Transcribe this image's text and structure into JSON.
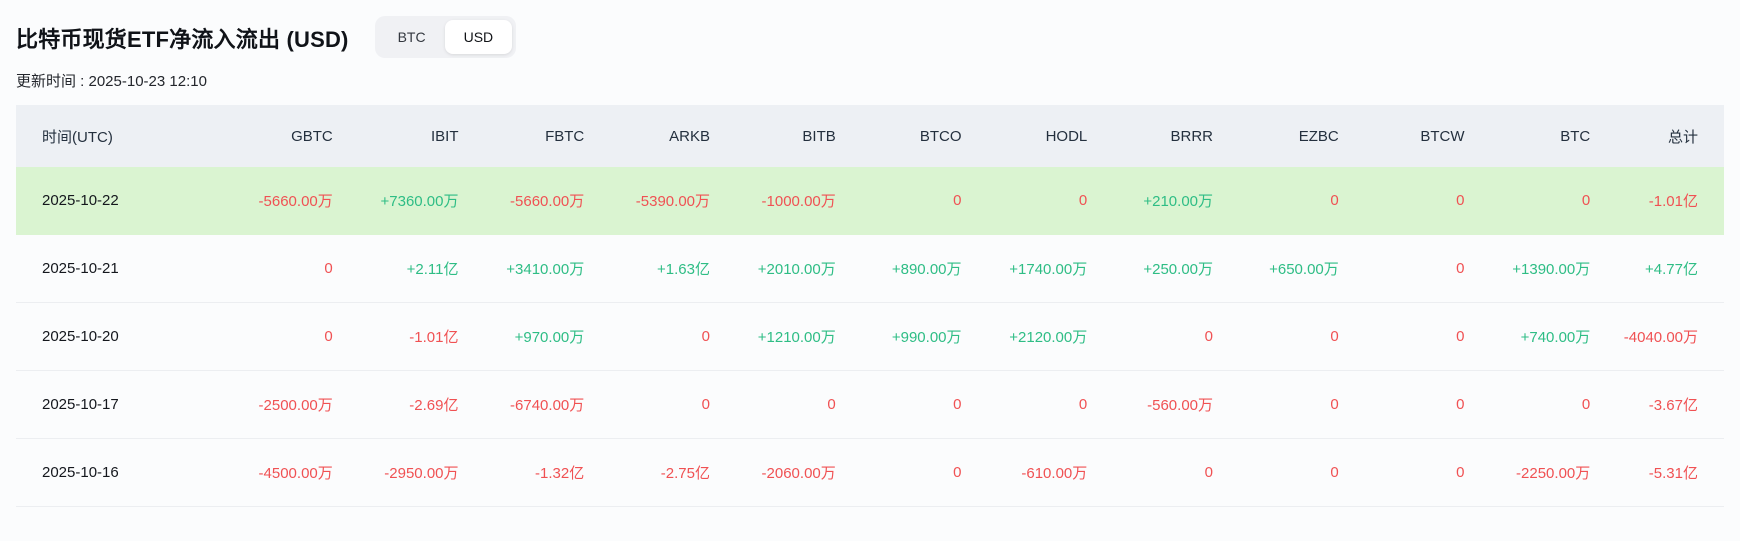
{
  "page": {
    "title": "比特币现货ETF净流入流出 (USD)",
    "updated_label": "更新时间 : 2025-10-23 12:10",
    "toggle": {
      "options": [
        {
          "label": "BTC",
          "key": "btc",
          "active": false
        },
        {
          "label": "USD",
          "key": "usd",
          "active": true
        }
      ]
    }
  },
  "colors": {
    "positive": "#2ebd85",
    "negative": "#f05153",
    "header_bg": "#edf0f4",
    "highlight_row_bg": "#daf4d1"
  },
  "table": {
    "columns": [
      "时间(UTC)",
      "GBTC",
      "IBIT",
      "FBTC",
      "ARKB",
      "BITB",
      "BTCO",
      "HODL",
      "BRRR",
      "EZBC",
      "BTCW",
      "BTC",
      "总计"
    ],
    "column_keys": [
      "time-utc",
      "gbtc",
      "ibit",
      "fbtc",
      "arkb",
      "bitb",
      "btco",
      "hodl",
      "brrr",
      "ezbc",
      "btcw",
      "btc",
      "total"
    ],
    "rows": [
      {
        "date": "2025-10-22",
        "highlight": true,
        "values": [
          "-5660.00万",
          "+7360.00万",
          "-5660.00万",
          "-5390.00万",
          "-1000.00万",
          "0",
          "0",
          "+210.00万",
          "0",
          "0",
          "0",
          "-1.01亿"
        ]
      },
      {
        "date": "2025-10-21",
        "highlight": false,
        "values": [
          "0",
          "+2.11亿",
          "+3410.00万",
          "+1.63亿",
          "+2010.00万",
          "+890.00万",
          "+1740.00万",
          "+250.00万",
          "+650.00万",
          "0",
          "+1390.00万",
          "+4.77亿"
        ]
      },
      {
        "date": "2025-10-20",
        "highlight": false,
        "values": [
          "0",
          "-1.01亿",
          "+970.00万",
          "0",
          "+1210.00万",
          "+990.00万",
          "+2120.00万",
          "0",
          "0",
          "0",
          "+740.00万",
          "-4040.00万"
        ]
      },
      {
        "date": "2025-10-17",
        "highlight": false,
        "values": [
          "-2500.00万",
          "-2.69亿",
          "-6740.00万",
          "0",
          "0",
          "0",
          "0",
          "-560.00万",
          "0",
          "0",
          "0",
          "-3.67亿"
        ]
      },
      {
        "date": "2025-10-16",
        "highlight": false,
        "values": [
          "-4500.00万",
          "-2950.00万",
          "-1.32亿",
          "-2.75亿",
          "-2060.00万",
          "0",
          "-610.00万",
          "0",
          "0",
          "0",
          "-2250.00万",
          "-5.31亿"
        ]
      }
    ]
  }
}
